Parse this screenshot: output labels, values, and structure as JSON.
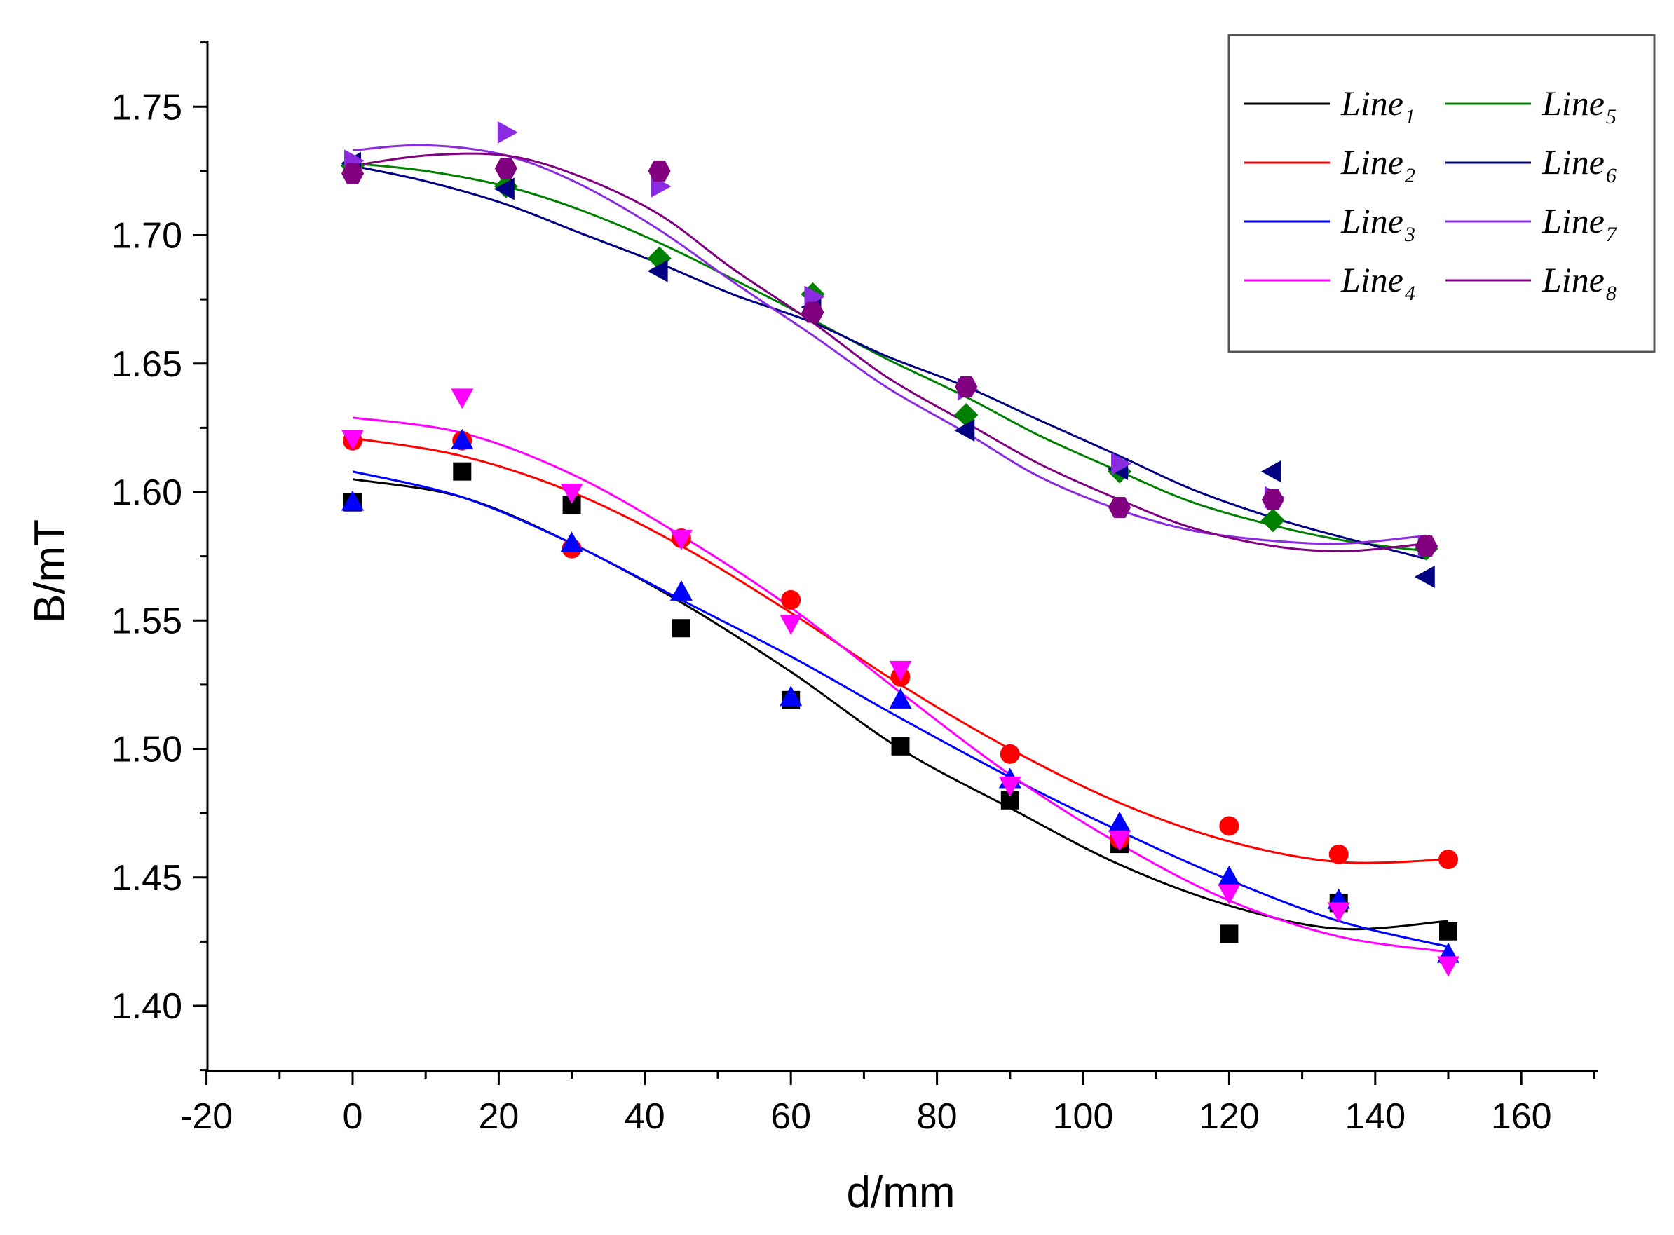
{
  "chart_data": {
    "type": "scatter",
    "title": "",
    "xlabel": "d/mm",
    "ylabel": "B/mT",
    "xlim": [
      -20,
      170
    ],
    "ylim": [
      1.375,
      1.775
    ],
    "xticks": [
      -20,
      0,
      20,
      40,
      60,
      80,
      100,
      120,
      140,
      160
    ],
    "xtick_labels": [
      "-20",
      "0",
      "20",
      "40",
      "60",
      "80",
      "100",
      "120",
      "140",
      "160"
    ],
    "yticks": [
      1.4,
      1.45,
      1.5,
      1.55,
      1.6,
      1.65,
      1.7,
      1.75
    ],
    "ytick_labels": [
      "1.40",
      "1.45",
      "1.50",
      "1.55",
      "1.60",
      "1.65",
      "1.70",
      "1.75"
    ],
    "grid": false,
    "legend": "top-right",
    "series": [
      {
        "name": "Line",
        "sub": "1",
        "color": "#000000",
        "marker": "square",
        "x": [
          0,
          15,
          30,
          45,
          60,
          75,
          90,
          105,
          120,
          135,
          150
        ],
        "y": [
          1.596,
          1.608,
          1.595,
          1.547,
          1.519,
          1.501,
          1.48,
          1.463,
          1.428,
          1.44,
          1.429
        ],
        "fit_x": [
          0,
          15,
          30,
          45,
          60,
          75,
          90,
          105,
          120,
          135,
          150
        ],
        "fit_y": [
          1.605,
          1.598,
          1.58,
          1.557,
          1.53,
          1.5,
          1.477,
          1.455,
          1.439,
          1.43,
          1.433
        ]
      },
      {
        "name": "Line",
        "sub": "2",
        "color": "#ff0000",
        "marker": "circle",
        "x": [
          0,
          15,
          30,
          45,
          60,
          75,
          90,
          105,
          120,
          135,
          150
        ],
        "y": [
          1.62,
          1.62,
          1.578,
          1.582,
          1.558,
          1.528,
          1.498,
          1.465,
          1.47,
          1.459,
          1.457
        ],
        "fit_x": [
          0,
          15,
          30,
          45,
          60,
          75,
          90,
          105,
          120,
          135,
          150
        ],
        "fit_y": [
          1.621,
          1.614,
          1.6,
          1.579,
          1.553,
          1.525,
          1.5,
          1.479,
          1.464,
          1.456,
          1.457
        ]
      },
      {
        "name": "Line",
        "sub": "3",
        "color": "#0000ff",
        "marker": "triangle-up",
        "x": [
          0,
          15,
          30,
          45,
          60,
          75,
          90,
          105,
          120,
          135,
          150
        ],
        "y": [
          1.596,
          1.62,
          1.58,
          1.561,
          1.52,
          1.519,
          1.488,
          1.471,
          1.45,
          1.441,
          1.42
        ],
        "fit_x": [
          0,
          15,
          30,
          45,
          60,
          75,
          90,
          105,
          120,
          135,
          150
        ],
        "fit_y": [
          1.608,
          1.598,
          1.58,
          1.558,
          1.536,
          1.512,
          1.489,
          1.468,
          1.449,
          1.433,
          1.423
        ]
      },
      {
        "name": "Line",
        "sub": "4",
        "color": "#ff00ff",
        "marker": "triangle-down",
        "x": [
          0,
          15,
          30,
          45,
          60,
          75,
          90,
          105,
          120,
          135,
          150
        ],
        "y": [
          1.621,
          1.637,
          1.6,
          1.582,
          1.549,
          1.531,
          1.486,
          1.465,
          1.444,
          1.437,
          1.416
        ],
        "fit_x": [
          0,
          15,
          30,
          45,
          60,
          75,
          90,
          105,
          120,
          135,
          150
        ],
        "fit_y": [
          1.629,
          1.623,
          1.607,
          1.583,
          1.555,
          1.522,
          1.49,
          1.463,
          1.441,
          1.427,
          1.421
        ]
      },
      {
        "name": "Line",
        "sub": "5",
        "color": "#008000",
        "marker": "diamond",
        "x": [
          0,
          21,
          42,
          63,
          84,
          105,
          126,
          147
        ],
        "y": [
          1.727,
          1.719,
          1.691,
          1.677,
          1.63,
          1.608,
          1.589,
          1.578
        ],
        "fit_x": [
          0,
          10,
          21,
          31,
          42,
          52,
          63,
          73,
          84,
          94,
          105,
          115,
          126,
          136,
          147
        ],
        "fit_y": [
          1.728,
          1.725,
          1.719,
          1.71,
          1.697,
          1.683,
          1.667,
          1.652,
          1.637,
          1.622,
          1.608,
          1.596,
          1.587,
          1.581,
          1.577
        ]
      },
      {
        "name": "Line",
        "sub": "6",
        "color": "#000080",
        "marker": "triangle-left",
        "x": [
          0,
          21,
          42,
          63,
          84,
          105,
          126,
          147
        ],
        "y": [
          1.728,
          1.718,
          1.686,
          1.672,
          1.624,
          1.609,
          1.608,
          1.567
        ],
        "fit_x": [
          0,
          10,
          21,
          31,
          42,
          52,
          63,
          73,
          84,
          94,
          105,
          115,
          126,
          136,
          147
        ],
        "fit_y": [
          1.727,
          1.721,
          1.712,
          1.701,
          1.689,
          1.677,
          1.666,
          1.653,
          1.641,
          1.628,
          1.614,
          1.601,
          1.59,
          1.582,
          1.574
        ]
      },
      {
        "name": "Line",
        "sub": "7",
        "color": "#8a2be2",
        "marker": "triangle-right",
        "x": [
          0,
          21,
          42,
          63,
          84,
          105,
          126,
          147
        ],
        "y": [
          1.729,
          1.74,
          1.719,
          1.676,
          1.64,
          1.611,
          1.598,
          1.579
        ],
        "fit_x": [
          0,
          10,
          21,
          31,
          42,
          52,
          63,
          73,
          84,
          94,
          105,
          115,
          126,
          136,
          147
        ],
        "fit_y": [
          1.733,
          1.735,
          1.731,
          1.72,
          1.702,
          1.682,
          1.661,
          1.641,
          1.623,
          1.606,
          1.593,
          1.585,
          1.581,
          1.58,
          1.583
        ]
      },
      {
        "name": "Line",
        "sub": "8",
        "color": "#800080",
        "marker": "hexagon",
        "x": [
          0,
          21,
          42,
          63,
          84,
          105,
          126,
          147
        ],
        "y": [
          1.724,
          1.726,
          1.725,
          1.67,
          1.641,
          1.594,
          1.597,
          1.579
        ],
        "fit_x": [
          0,
          10,
          21,
          31,
          42,
          52,
          63,
          73,
          84,
          94,
          105,
          115,
          126,
          136,
          147
        ],
        "fit_y": [
          1.727,
          1.731,
          1.731,
          1.723,
          1.708,
          1.687,
          1.666,
          1.645,
          1.627,
          1.611,
          1.597,
          1.586,
          1.579,
          1.577,
          1.58
        ]
      }
    ]
  }
}
